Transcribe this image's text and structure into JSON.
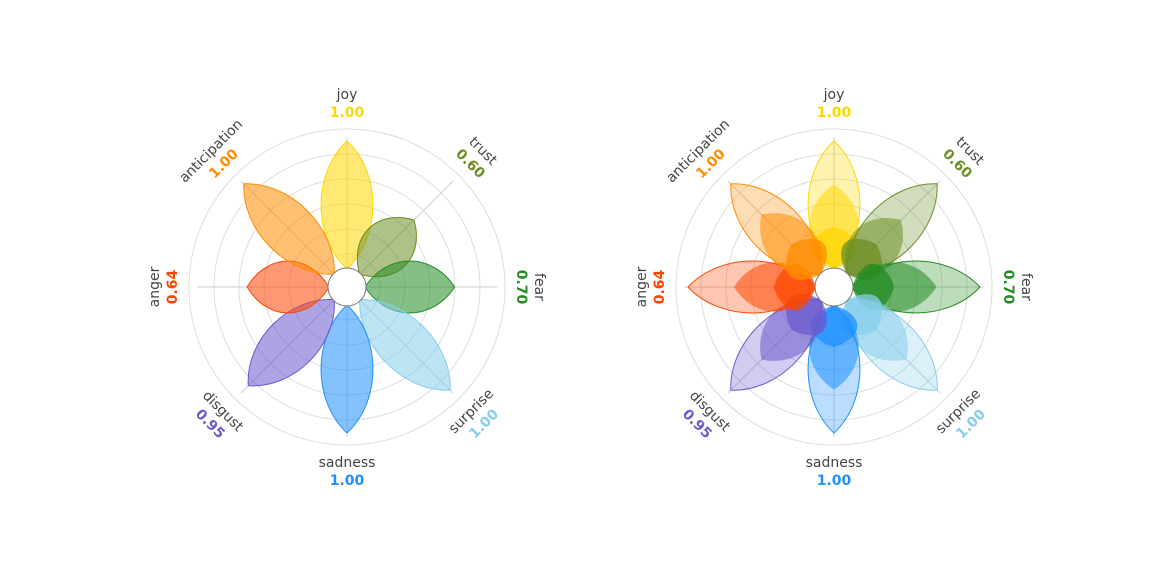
{
  "chart_data": [
    {
      "type": "radar",
      "style": "plutchik-petals",
      "emotions": [
        "joy",
        "trust",
        "fear",
        "surprise",
        "sadness",
        "disgust",
        "anger",
        "anticipation"
      ],
      "values": [
        1.0,
        0.6,
        0.7,
        1.0,
        1.0,
        0.95,
        0.64,
        1.0
      ],
      "value_labels": [
        "1.00",
        "0.60",
        "0.70",
        "1.00",
        "1.00",
        "0.95",
        "0.64",
        "1.00"
      ],
      "colors": [
        "#ffd700",
        "#6b8e23",
        "#228b22",
        "#87ceeb",
        "#1e90ff",
        "#6a5acd",
        "#ff4500",
        "#ff8c00"
      ],
      "rlim": [
        0,
        1
      ],
      "grid": true
    },
    {
      "type": "radar",
      "style": "plutchik-petals-intensity",
      "emotions": [
        "joy",
        "trust",
        "fear",
        "surprise",
        "sadness",
        "disgust",
        "anger",
        "anticipation"
      ],
      "values": [
        1.0,
        0.6,
        0.7,
        1.0,
        1.0,
        0.95,
        0.64,
        1.0
      ],
      "value_labels": [
        "1.00",
        "0.60",
        "0.70",
        "1.00",
        "1.00",
        "0.95",
        "0.64",
        "1.00"
      ],
      "colors": [
        "#ffd700",
        "#6b8e23",
        "#228b22",
        "#87ceeb",
        "#1e90ff",
        "#6a5acd",
        "#ff4500",
        "#ff8c00"
      ],
      "rlim": [
        0,
        1
      ],
      "grid": true
    }
  ]
}
